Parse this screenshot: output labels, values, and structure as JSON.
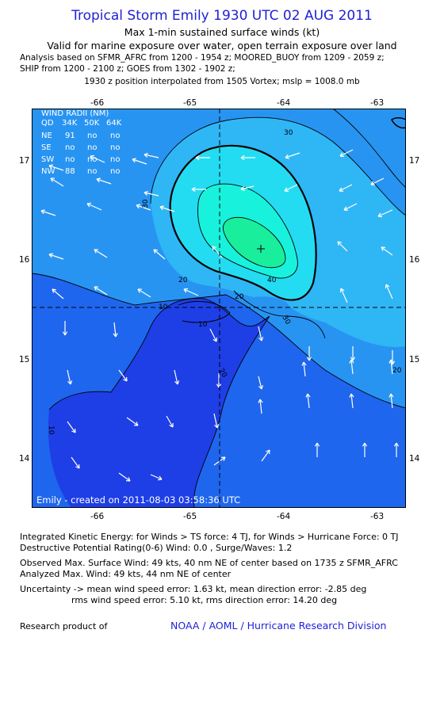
{
  "header": {
    "title": "Tropical Storm Emily 1930 UTC 02 AUG 2011",
    "subtitle": "Max 1-min sustained surface winds (kt)",
    "validity": "Valid for marine exposure over water, open terrain exposure over land",
    "analysis_line1": "Analysis based on SFMR_AFRC from 1200 - 1954 z; MOORED_BUOY from 1209 - 2059 z;",
    "analysis_line2": "SHIP from 1200 - 2100 z; GOES from 1302 - 1902 z;",
    "position_line": "1930 z position interpolated from 1505 Vortex; mslp = 1008.0 mb"
  },
  "map": {
    "lon_ticks": [
      "-66",
      "-65",
      "-64",
      "-63"
    ],
    "lat_ticks": [
      "17",
      "16",
      "15",
      "14"
    ],
    "credit": "Emily - created on 2011-08-03 03:58:36 UTC",
    "contour_labels": [
      "30",
      "30",
      "40",
      "20",
      "20",
      "30",
      "20",
      "10",
      "10",
      "20",
      "10"
    ],
    "colors": {
      "c0_10": "#1e3ee6",
      "c10_20": "#1f66ee",
      "c20_30": "#2894f2",
      "c30_34": "#2fb6f5",
      "c34_40": "#23dcf2",
      "c40_45": "#18f2dc",
      "c45_50": "#19ee9c"
    }
  },
  "wind_radii": {
    "title": "WIND RADII (NM)",
    "header": [
      "QD",
      "34K",
      "50K",
      "64K"
    ],
    "rows": [
      [
        "NE",
        "91",
        "no",
        "no"
      ],
      [
        "SE",
        "no",
        "no",
        "no"
      ],
      [
        "SW",
        "no",
        "no",
        "no"
      ],
      [
        "NW",
        "88",
        "no",
        "no"
      ]
    ]
  },
  "footer": {
    "ike": "Integrated Kinetic Energy:  for Winds > TS force: 4 TJ,  for Winds > Hurricane Force: 0 TJ",
    "dpr": "Destructive Potential Rating(0-6)   Wind: 0.0 , Surge/Waves: 1.2",
    "observed": "Observed Max. Surface Wind: 49 kts, 40 nm NE of center based on 1735 z SFMR_AFRC",
    "analyzed": "Analyzed Max. Wind: 49 kts, 44 nm NE of center",
    "uncertainty1": "Uncertainty -> mean wind speed error: 1.63 kt,   mean direction error:  -2.85 deg",
    "uncertainty2": "rms wind speed error: 5.10 kt,   rms direction error: 14.20 deg",
    "research": "Research product of",
    "org": "NOAA / AOML / Hurricane Research Division"
  }
}
